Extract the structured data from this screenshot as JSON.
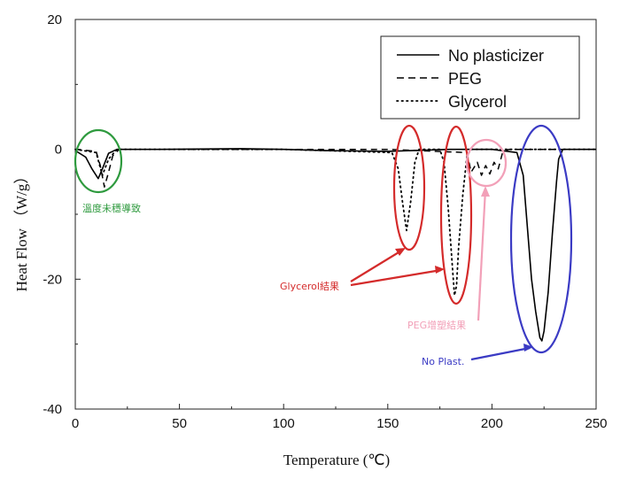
{
  "chart_data": {
    "type": "line",
    "title": "",
    "xlabel": "Temperature (℃)",
    "ylabel": "Heat Flow （W/g）",
    "xlim": [
      0,
      250
    ],
    "ylim": [
      -40,
      20
    ],
    "x_ticks": [
      "0",
      "50",
      "100",
      "150",
      "200",
      "250"
    ],
    "y_ticks": [
      "20",
      "0",
      "-20",
      "-40"
    ],
    "grid": false,
    "legend_position": "top-right",
    "series": [
      {
        "name": "No plasticizer",
        "style": "solid",
        "x": [
          0,
          5,
          8,
          11,
          13,
          16,
          20,
          40,
          80,
          100,
          120,
          150,
          180,
          200,
          212,
          215,
          217,
          219,
          221,
          223,
          224,
          225,
          227,
          229,
          231,
          232,
          234,
          240,
          250
        ],
        "y": [
          -0.2,
          -1.2,
          -3.0,
          -4.5,
          -3.0,
          -0.6,
          0,
          0,
          0.1,
          0,
          -0.2,
          -0.3,
          0,
          0,
          -0.5,
          -4,
          -12,
          -20,
          -25,
          -29,
          -29.5,
          -28,
          -22,
          -13,
          -5,
          -1.5,
          0,
          0,
          0
        ]
      },
      {
        "name": "PEG",
        "style": "dashed",
        "x": [
          0,
          10,
          12,
          14,
          16,
          18,
          21,
          25,
          100,
          150,
          188,
          190,
          193,
          195,
          197,
          199,
          201,
          203,
          205,
          208,
          250
        ],
        "y": [
          0,
          -0.3,
          -2.5,
          -5.8,
          -3.5,
          -1.0,
          0,
          0,
          0,
          0,
          -0.5,
          -3.5,
          -2.0,
          -4.0,
          -2.5,
          -3.8,
          -2.0,
          -3.0,
          -0.6,
          0,
          0
        ]
      },
      {
        "name": "Glycerol",
        "style": "dotted",
        "x": [
          0,
          10,
          13,
          16,
          20,
          100,
          152,
          155,
          157,
          159,
          161,
          163,
          165,
          175,
          177,
          179,
          181,
          182,
          183,
          184,
          186,
          188,
          190,
          250
        ],
        "y": [
          0,
          -0.5,
          -4.0,
          -1.5,
          0,
          0,
          -0.5,
          -3,
          -8,
          -12.5,
          -8,
          -2,
          0,
          0,
          -2,
          -9,
          -18,
          -22.5,
          -21,
          -15,
          -7,
          -1,
          0,
          0
        ]
      }
    ],
    "annotations": [
      {
        "text": "溫度未穩導致",
        "color": "#2e9a3e"
      },
      {
        "text": "Glycerol結果",
        "color": "#d42b2b"
      },
      {
        "text": "PEG增塑結果",
        "color": "#f2a0b8"
      },
      {
        "text": "No Plast.",
        "color": "#3b3bc4"
      }
    ]
  }
}
